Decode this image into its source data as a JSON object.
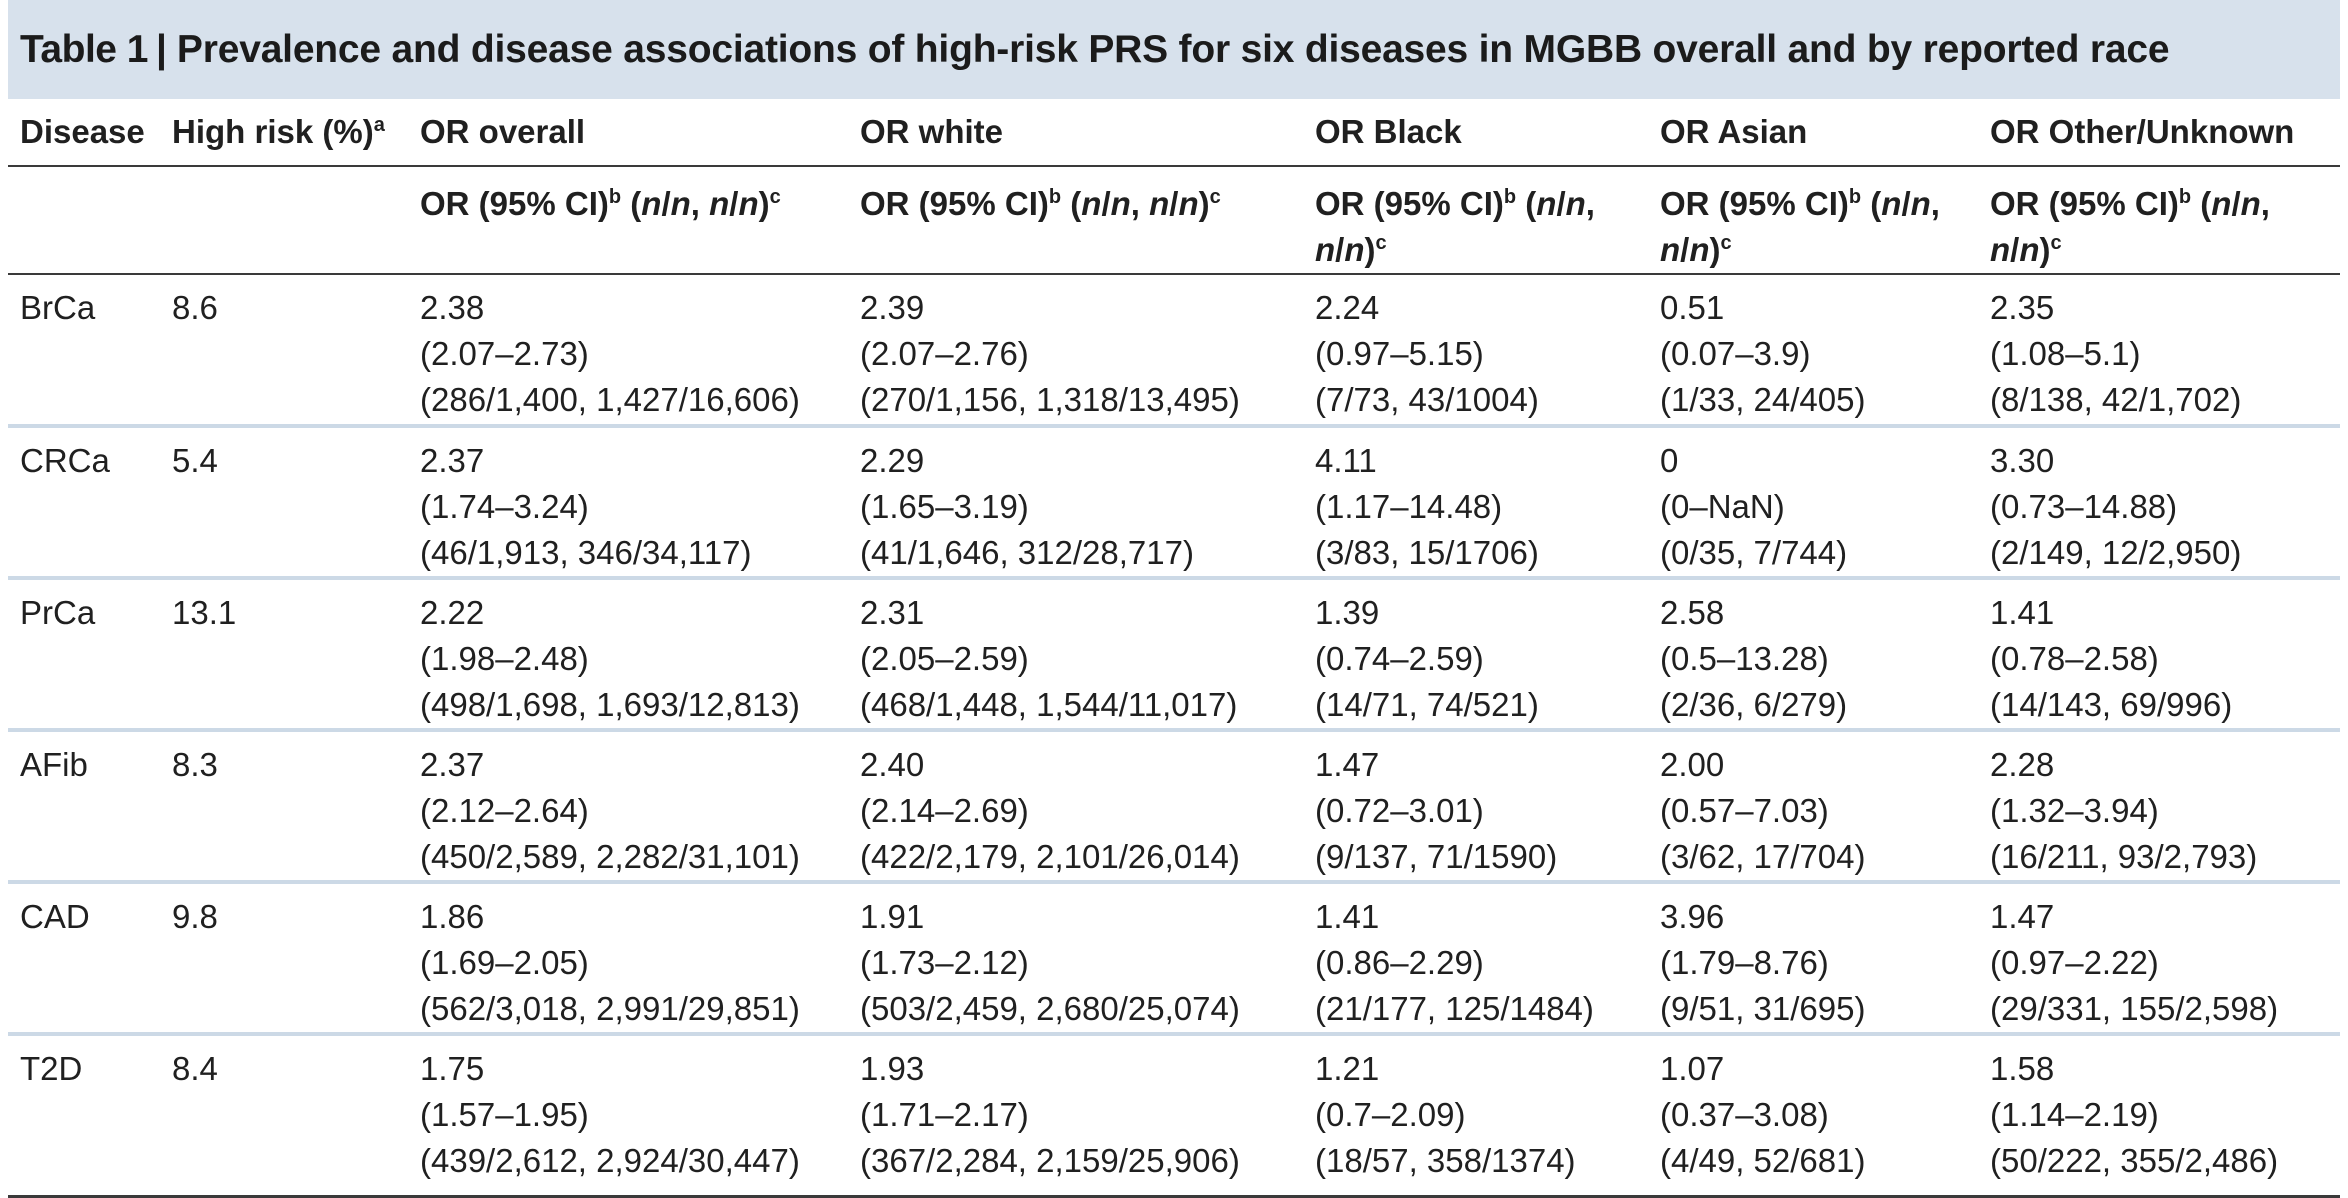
{
  "title": {
    "label": "Table 1",
    "separator": "|",
    "text": "Prevalence and disease associations of high-risk PRS for six diseases in MGBB overall and by reported race"
  },
  "headers": {
    "disease": "Disease",
    "high_risk": "High risk (%)",
    "high_risk_sup": "a",
    "or_overall": "OR overall",
    "or_white": "OR white",
    "or_black": "OR Black",
    "or_asian": "OR Asian",
    "or_other": "OR Other/Unknown"
  },
  "subheader": {
    "prefix": "OR (95% CI)",
    "sup_b": "b",
    "open": "(",
    "n1": "n",
    "slash1": "/",
    "n2": "n",
    "comma": ",",
    "n3": "n",
    "slash2": "/",
    "n4": "n",
    "close": ")",
    "sup_c": "c"
  },
  "rows": [
    {
      "disease": "BrCa",
      "high_risk": "8.6",
      "overall": {
        "or": "2.38",
        "ci": "(2.07–2.73)",
        "n": "(286/1,400, 1,427/16,606)"
      },
      "white": {
        "or": "2.39",
        "ci": "(2.07–2.76)",
        "n": "(270/1,156, 1,318/13,495)"
      },
      "black": {
        "or": "2.24",
        "ci": "(0.97–5.15)",
        "n": "(7/73, 43/1004)"
      },
      "asian": {
        "or": "0.51",
        "ci": "(0.07–3.9)",
        "n": "(1/33, 24/405)"
      },
      "other": {
        "or": "2.35",
        "ci": "(1.08–5.1)",
        "n": "(8/138, 42/1,702)"
      }
    },
    {
      "disease": "CRCa",
      "high_risk": "5.4",
      "overall": {
        "or": "2.37",
        "ci": "(1.74–3.24)",
        "n": "(46/1,913, 346/34,117)"
      },
      "white": {
        "or": "2.29",
        "ci": "(1.65–3.19)",
        "n": "(41/1,646, 312/28,717)"
      },
      "black": {
        "or": "4.11",
        "ci": "(1.17–14.48)",
        "n": "(3/83, 15/1706)"
      },
      "asian": {
        "or": "0",
        "ci": "(0–NaN)",
        "n": "(0/35, 7/744)"
      },
      "other": {
        "or": "3.30",
        "ci": "(0.73–14.88)",
        "n": "(2/149, 12/2,950)"
      }
    },
    {
      "disease": "PrCa",
      "high_risk": "13.1",
      "overall": {
        "or": "2.22",
        "ci": "(1.98–2.48)",
        "n": "(498/1,698, 1,693/12,813)"
      },
      "white": {
        "or": "2.31",
        "ci": "(2.05–2.59)",
        "n": "(468/1,448, 1,544/11,017)"
      },
      "black": {
        "or": "1.39",
        "ci": "(0.74–2.59)",
        "n": "(14/71, 74/521)"
      },
      "asian": {
        "or": "2.58",
        "ci": "(0.5–13.28)",
        "n": "(2/36, 6/279)"
      },
      "other": {
        "or": "1.41",
        "ci": "(0.78–2.58)",
        "n": "(14/143, 69/996)"
      }
    },
    {
      "disease": "AFib",
      "high_risk": "8.3",
      "overall": {
        "or": "2.37",
        "ci": "(2.12–2.64)",
        "n": "(450/2,589, 2,282/31,101)"
      },
      "white": {
        "or": "2.40",
        "ci": "(2.14–2.69)",
        "n": "(422/2,179, 2,101/26,014)"
      },
      "black": {
        "or": "1.47",
        "ci": "(0.72–3.01)",
        "n": "(9/137, 71/1590)"
      },
      "asian": {
        "or": "2.00",
        "ci": "(0.57–7.03)",
        "n": "(3/62, 17/704)"
      },
      "other": {
        "or": "2.28",
        "ci": "(1.32–3.94)",
        "n": "(16/211, 93/2,793)"
      }
    },
    {
      "disease": "CAD",
      "high_risk": "9.8",
      "overall": {
        "or": "1.86",
        "ci": "(1.69–2.05)",
        "n": "(562/3,018, 2,991/29,851)"
      },
      "white": {
        "or": "1.91",
        "ci": "(1.73–2.12)",
        "n": "(503/2,459, 2,680/25,074)"
      },
      "black": {
        "or": "1.41",
        "ci": "(0.86–2.29)",
        "n": "(21/177, 125/1484)"
      },
      "asian": {
        "or": "3.96",
        "ci": "(1.79–8.76)",
        "n": "(9/51, 31/695)"
      },
      "other": {
        "or": "1.47",
        "ci": "(0.97–2.22)",
        "n": "(29/331, 155/2,598)"
      }
    },
    {
      "disease": "T2D",
      "high_risk": "8.4",
      "overall": {
        "or": "1.75",
        "ci": "(1.57–1.95)",
        "n": "(439/2,612, 2,924/30,447)"
      },
      "white": {
        "or": "1.93",
        "ci": "(1.71–2.17)",
        "n": "(367/2,284, 2,159/25,906)"
      },
      "black": {
        "or": "1.21",
        "ci": "(0.7–2.09)",
        "n": "(18/57, 358/1374)"
      },
      "asian": {
        "or": "1.07",
        "ci": "(0.37–3.08)",
        "n": "(4/49, 52/681)"
      },
      "other": {
        "or": "1.58",
        "ci": "(1.14–2.19)",
        "n": "(50/222, 355/2,486)"
      }
    }
  ],
  "colors": {
    "title_background": "#d7e1ec",
    "row_divider": "#ccd9e6",
    "header_rule": "#3a3a3a"
  }
}
